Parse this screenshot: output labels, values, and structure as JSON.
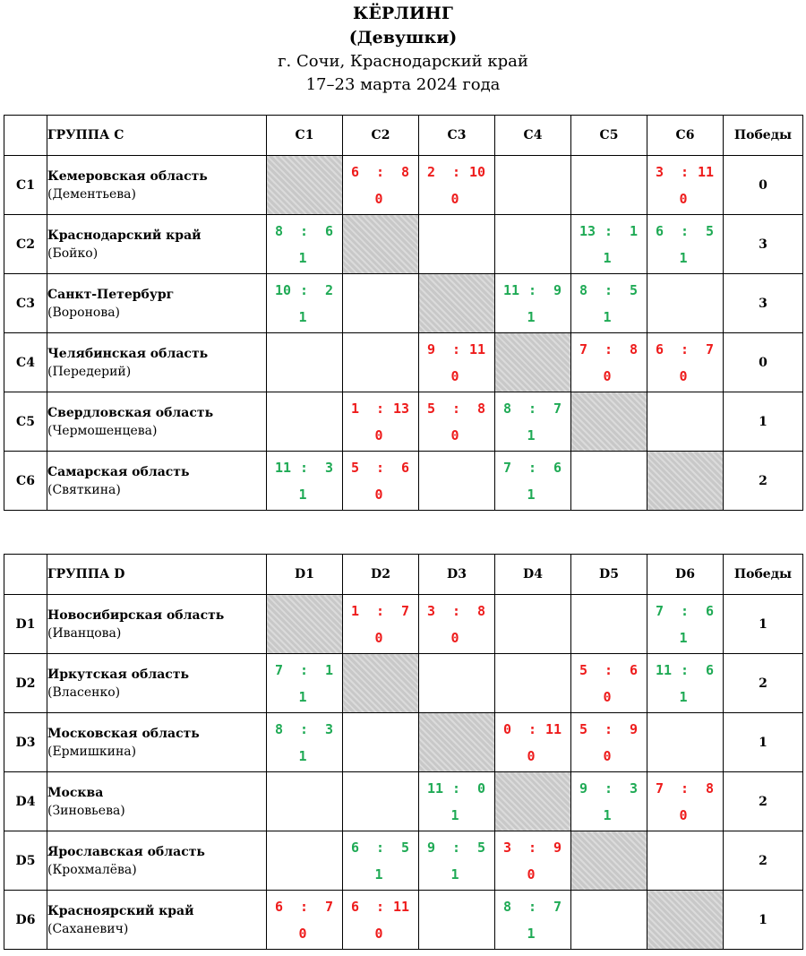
{
  "header": {
    "title": "КЁРЛИНГ",
    "subtitle": "(Девушки)",
    "place": "г. Сочи, Краснодарский край",
    "dates": "17–23 марта 2024 года"
  },
  "colors": {
    "win": "#1faa55",
    "loss": "#ee1c1c",
    "diagonal": "#c8c8c8"
  },
  "wins_label": "Победы",
  "score_separator": ":",
  "groups": [
    {
      "label": "ГРУППА C",
      "codes": [
        "C1",
        "C2",
        "C3",
        "C4",
        "C5",
        "C6"
      ],
      "teams": [
        {
          "code": "C1",
          "name": "Кемеровская область",
          "athlete": "(Дементьева)",
          "wins": "0",
          "results": [
            null,
            {
              "a": "6",
              "b": "8",
              "p": "0"
            },
            {
              "a": "2",
              "b": "10",
              "p": "0"
            },
            null,
            null,
            {
              "a": "3",
              "b": "11",
              "p": "0"
            }
          ]
        },
        {
          "code": "C2",
          "name": "Краснодарский край",
          "athlete": "(Бойко)",
          "wins": "3",
          "results": [
            {
              "a": "8",
              "b": "6",
              "p": "1"
            },
            null,
            null,
            null,
            {
              "a": "13",
              "b": "1",
              "p": "1"
            },
            {
              "a": "6",
              "b": "5",
              "p": "1"
            }
          ]
        },
        {
          "code": "C3",
          "name": "Санкт-Петербург",
          "athlete": "(Воронова)",
          "wins": "3",
          "results": [
            {
              "a": "10",
              "b": "2",
              "p": "1"
            },
            null,
            null,
            {
              "a": "11",
              "b": "9",
              "p": "1"
            },
            {
              "a": "8",
              "b": "5",
              "p": "1"
            },
            null
          ]
        },
        {
          "code": "C4",
          "name": "Челябинская область",
          "athlete": "(Передерий)",
          "wins": "0",
          "results": [
            null,
            null,
            {
              "a": "9",
              "b": "11",
              "p": "0"
            },
            null,
            {
              "a": "7",
              "b": "8",
              "p": "0"
            },
            {
              "a": "6",
              "b": "7",
              "p": "0"
            }
          ]
        },
        {
          "code": "C5",
          "name": "Свердловская область",
          "athlete": "(Чермошенцева)",
          "wins": "1",
          "results": [
            null,
            {
              "a": "1",
              "b": "13",
              "p": "0"
            },
            {
              "a": "5",
              "b": "8",
              "p": "0"
            },
            {
              "a": "8",
              "b": "7",
              "p": "1"
            },
            null,
            null
          ]
        },
        {
          "code": "C6",
          "name": "Самарская область",
          "athlete": "(Святкина)",
          "wins": "2",
          "results": [
            {
              "a": "11",
              "b": "3",
              "p": "1"
            },
            {
              "a": "5",
              "b": "6",
              "p": "0"
            },
            null,
            {
              "a": "7",
              "b": "6",
              "p": "1"
            },
            null,
            null
          ]
        }
      ]
    },
    {
      "label": "ГРУППА D",
      "codes": [
        "D1",
        "D2",
        "D3",
        "D4",
        "D5",
        "D6"
      ],
      "teams": [
        {
          "code": "D1",
          "name": "Новосибирская область",
          "athlete": "(Иванцова)",
          "wins": "1",
          "results": [
            null,
            {
              "a": "1",
              "b": "7",
              "p": "0"
            },
            {
              "a": "3",
              "b": "8",
              "p": "0"
            },
            null,
            null,
            {
              "a": "7",
              "b": "6",
              "p": "1"
            }
          ]
        },
        {
          "code": "D2",
          "name": "Иркутская область",
          "athlete": "(Власенко)",
          "wins": "2",
          "results": [
            {
              "a": "7",
              "b": "1",
              "p": "1"
            },
            null,
            null,
            null,
            {
              "a": "5",
              "b": "6",
              "p": "0"
            },
            {
              "a": "11",
              "b": "6",
              "p": "1"
            }
          ]
        },
        {
          "code": "D3",
          "name": "Московская область",
          "athlete": "(Ермишкина)",
          "wins": "1",
          "results": [
            {
              "a": "8",
              "b": "3",
              "p": "1"
            },
            null,
            null,
            {
              "a": "0",
              "b": "11",
              "p": "0"
            },
            {
              "a": "5",
              "b": "9",
              "p": "0"
            },
            null
          ]
        },
        {
          "code": "D4",
          "name": "Москва",
          "athlete": "(Зиновьева)",
          "wins": "2",
          "results": [
            null,
            null,
            {
              "a": "11",
              "b": "0",
              "p": "1"
            },
            null,
            {
              "a": "9",
              "b": "3",
              "p": "1"
            },
            {
              "a": "7",
              "b": "8",
              "p": "0"
            }
          ]
        },
        {
          "code": "D5",
          "name": "Ярославская область",
          "athlete": "(Крохмалёва)",
          "wins": "2",
          "results": [
            null,
            {
              "a": "6",
              "b": "5",
              "p": "1"
            },
            {
              "a": "9",
              "b": "5",
              "p": "1"
            },
            {
              "a": "3",
              "b": "9",
              "p": "0"
            },
            null,
            null
          ]
        },
        {
          "code": "D6",
          "name": "Красноярский край",
          "athlete": "(Саханевич)",
          "wins": "1",
          "results": [
            {
              "a": "6",
              "b": "7",
              "p": "0"
            },
            {
              "a": "6",
              "b": "11",
              "p": "0"
            },
            null,
            {
              "a": "8",
              "b": "7",
              "p": "1"
            },
            null,
            null
          ]
        }
      ]
    }
  ]
}
